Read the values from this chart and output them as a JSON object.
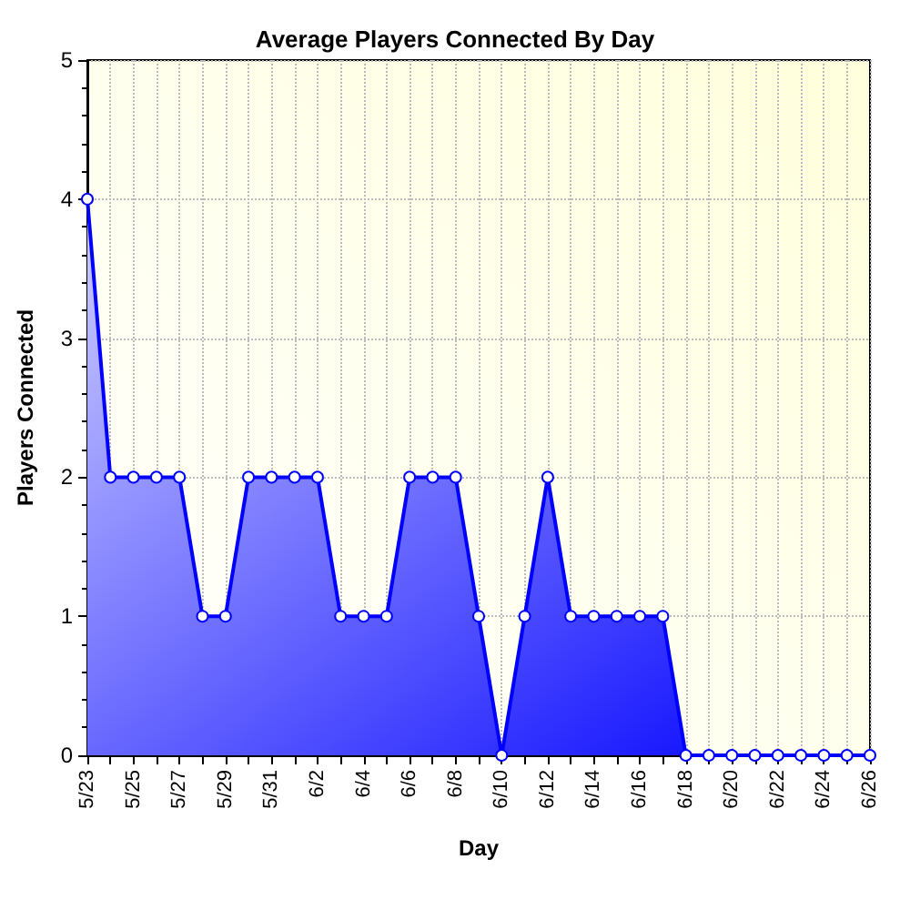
{
  "chart_data": {
    "type": "area",
    "title": "Average Players Connected By Day",
    "xlabel": "Day",
    "ylabel": "Players Connected",
    "categories": [
      "5/23",
      null,
      "5/25",
      null,
      "5/27",
      null,
      "5/29",
      null,
      "5/31",
      null,
      "6/2",
      null,
      "6/4",
      null,
      "6/6",
      null,
      "6/8",
      null,
      "6/10",
      null,
      "6/12",
      null,
      "6/14",
      null,
      "6/16",
      null,
      "6/18",
      null,
      "6/20",
      null,
      "6/22",
      null,
      "6/24",
      null,
      "6/26"
    ],
    "series": [
      {
        "color": "#0000ff",
        "values": [
          4,
          2,
          2,
          2,
          2,
          1,
          1,
          2,
          2,
          2,
          2,
          1,
          1,
          1,
          2,
          2,
          2,
          1,
          0,
          1,
          2,
          1,
          1,
          1,
          1,
          1,
          0,
          0,
          0,
          0,
          0,
          0,
          0,
          0,
          0
        ]
      }
    ],
    "ylim": [
      0,
      5
    ],
    "yticks": [
      0,
      1,
      2,
      3,
      4,
      5
    ],
    "grid": true,
    "marker": "circle",
    "line_style": "solid"
  }
}
